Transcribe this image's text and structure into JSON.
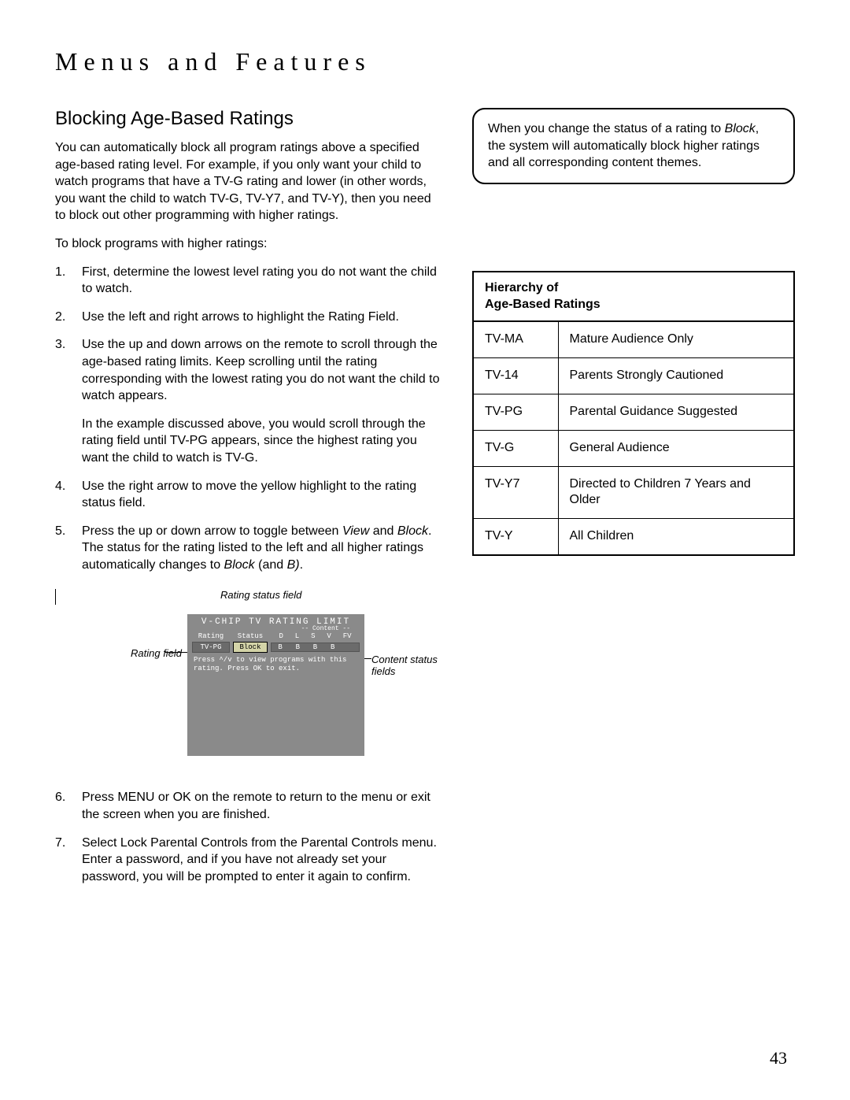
{
  "chapter_title": "Menus and Features",
  "section_title": "Blocking Age-Based Ratings",
  "intro_paragraph": "You can automatically block all program ratings above a specified age-based rating level. For example, if you only want your child to watch programs that have a TV-G rating and lower (in other words, you want the child to watch TV-G, TV-Y7, and TV-Y), then you need to block out other programming with higher ratings.",
  "intro_lead": "To block programs with higher ratings:",
  "steps": {
    "s1": "First, determine the lowest level rating you do not want the child to watch.",
    "s2": "Use the left and right arrows to highlight the Rating Field.",
    "s3": "Use the up and down arrows on the remote to scroll through the age-based rating limits. Keep scrolling until the rating corresponding with the lowest rating you do not want the child to watch appears.",
    "s3b": "In the example discussed above, you would scroll through the rating field until TV-PG appears, since the highest rating you want the child to watch is TV-G.",
    "s4": "Use the right arrow to move the yellow highlight to the rating status field.",
    "s5_a": "Press the up or down arrow to toggle between ",
    "s5_view": "View",
    "s5_b": " and ",
    "s5_block": "Block",
    "s5_c": ". The status for the rating listed to the left and all higher ratings automatically changes to ",
    "s5_block2": "Block",
    "s5_d": " (and ",
    "s5_bital": "B)",
    "s5_e": ".",
    "s6": "Press MENU or OK on the remote to return to the menu or exit the screen when you are finished.",
    "s7": "Select Lock Parental Controls from the Parental Controls menu. Enter a password, and if you have not already set your password, you will be prompted to enter it again to confirm."
  },
  "callout_a": "When you change the status of a rating to ",
  "callout_block": "Block",
  "callout_b": ", the system will automatically block higher ratings and all corresponding content themes.",
  "hierarchy_title": "Hierarchy of\nAge-Based Ratings",
  "ratings": [
    {
      "code": "TV-MA",
      "desc": "Mature Audience Only"
    },
    {
      "code": "TV-14",
      "desc": "Parents Strongly Cautioned"
    },
    {
      "code": "TV-PG",
      "desc": "Parental Guidance Suggested"
    },
    {
      "code": "TV-G",
      "desc": "General Audience"
    },
    {
      "code": "TV-Y7",
      "desc": "Directed to Children 7 Years and Older"
    },
    {
      "code": "TV-Y",
      "desc": "All Children"
    }
  ],
  "diagram": {
    "caption_top": "Rating status field",
    "label_left": "Rating field",
    "label_right": "Content status fields",
    "tv_title": "V-CHIP TV RATING LIMIT",
    "content_header": "-- Content --",
    "hdr_rating": "Rating",
    "hdr_status": "Status",
    "content_cols": [
      "D",
      "L",
      "S",
      "V",
      "FV"
    ],
    "val_rating": "TV-PG",
    "val_status": "Block",
    "content_vals": [
      "B",
      "B",
      "B",
      "B",
      ""
    ],
    "instruction": "Press ^/v to view programs with this rating. Press OK to exit."
  },
  "page_number": "43",
  "colors": {
    "page_bg": "#ffffff",
    "text": "#000000",
    "tv_bg": "#8a8a8a",
    "tv_field_bg": "#6b6b6b",
    "highlight_bg": "#d4d4a8"
  }
}
